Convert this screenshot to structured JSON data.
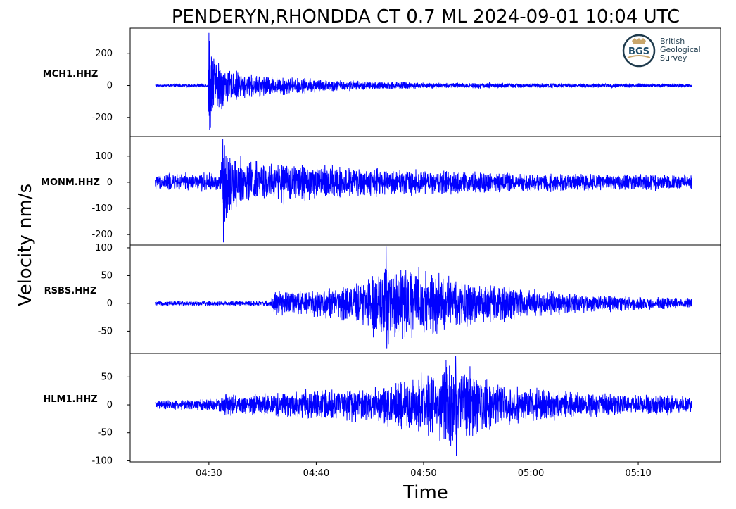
{
  "title": "PENDERYN,RHONDDA CT 0.7 ML   2024-09-01 10:04 UTC",
  "ylabel": "Velocity nm/s",
  "xlabel": "Time",
  "logo": {
    "abbr": "BGS",
    "line1": "British",
    "line2": "Geological",
    "line3": "Survey"
  },
  "colors": {
    "trace": "#0000ff",
    "frame": "#000000"
  },
  "chart_data": {
    "type": "line",
    "x_ticks": [
      "04:30",
      "04:40",
      "04:50",
      "05:00",
      "05:10"
    ],
    "x_range_minutes": [
      "04:22:40",
      "05:17:40"
    ],
    "trace_span": [
      "04:25",
      "05:15"
    ],
    "panels": [
      {
        "name": "MCH1.HHZ",
        "ylim": [
          -320,
          360
        ],
        "yticks": [
          200,
          0,
          -200
        ],
        "ytick_labels": [
          "200",
          "0",
          "-200"
        ],
        "noise": 8,
        "peak_max": 330,
        "peak_min": -280,
        "envelope": [
          {
            "t": 0,
            "a": 8
          },
          {
            "t": 4.9,
            "a": 10
          },
          {
            "t": 5.0,
            "a": 300
          },
          {
            "t": 5.6,
            "a": 180
          },
          {
            "t": 6.2,
            "a": 160
          },
          {
            "t": 7,
            "a": 90
          },
          {
            "t": 9,
            "a": 70
          },
          {
            "t": 11,
            "a": 60
          },
          {
            "t": 14,
            "a": 45
          },
          {
            "t": 18,
            "a": 30
          },
          {
            "t": 25,
            "a": 20
          },
          {
            "t": 35,
            "a": 15
          },
          {
            "t": 50,
            "a": 12
          }
        ]
      },
      {
        "name": "MONM.HHZ",
        "ylim": [
          -240,
          175
        ],
        "yticks": [
          100,
          0,
          -100,
          -200
        ],
        "ytick_labels": [
          "100",
          "0",
          "-100",
          "-200"
        ],
        "noise": 25,
        "peak_max": 165,
        "peak_min": -230,
        "envelope": [
          {
            "t": 0,
            "a": 30
          },
          {
            "t": 6,
            "a": 35
          },
          {
            "t": 6.3,
            "a": 150
          },
          {
            "t": 7.5,
            "a": 90
          },
          {
            "t": 10,
            "a": 75
          },
          {
            "t": 14,
            "a": 70
          },
          {
            "t": 18,
            "a": 55
          },
          {
            "t": 25,
            "a": 45
          },
          {
            "t": 35,
            "a": 35
          },
          {
            "t": 50,
            "a": 28
          }
        ]
      },
      {
        "name": "RSBS.HHZ",
        "ylim": [
          -90,
          105
        ],
        "yticks": [
          100,
          50,
          0,
          -50
        ],
        "ytick_labels": [
          "100",
          "50",
          "0",
          "-50"
        ],
        "noise": 4,
        "peak_max": 102,
        "peak_min": -82,
        "envelope": [
          {
            "t": 0,
            "a": 4
          },
          {
            "t": 10.8,
            "a": 5
          },
          {
            "t": 11,
            "a": 20
          },
          {
            "t": 14,
            "a": 22
          },
          {
            "t": 18,
            "a": 30
          },
          {
            "t": 20,
            "a": 45
          },
          {
            "t": 21.5,
            "a": 80
          },
          {
            "t": 23,
            "a": 65
          },
          {
            "t": 26,
            "a": 55
          },
          {
            "t": 30,
            "a": 35
          },
          {
            "t": 36,
            "a": 22
          },
          {
            "t": 42,
            "a": 14
          },
          {
            "t": 50,
            "a": 10
          }
        ]
      },
      {
        "name": "HLM1.HHZ",
        "ylim": [
          -102,
          92
        ],
        "yticks": [
          50,
          0,
          -50,
          -100
        ],
        "ytick_labels": [
          "50",
          "0",
          "-50",
          "-100"
        ],
        "noise": 8,
        "peak_max": 88,
        "peak_min": -92,
        "envelope": [
          {
            "t": 0,
            "a": 7
          },
          {
            "t": 6,
            "a": 12
          },
          {
            "t": 6.5,
            "a": 25
          },
          {
            "t": 8,
            "a": 15
          },
          {
            "t": 12,
            "a": 22
          },
          {
            "t": 16,
            "a": 30
          },
          {
            "t": 20,
            "a": 28
          },
          {
            "t": 24,
            "a": 45
          },
          {
            "t": 28,
            "a": 75
          },
          {
            "t": 30,
            "a": 50
          },
          {
            "t": 34,
            "a": 30
          },
          {
            "t": 40,
            "a": 20
          },
          {
            "t": 50,
            "a": 15
          }
        ]
      }
    ]
  }
}
